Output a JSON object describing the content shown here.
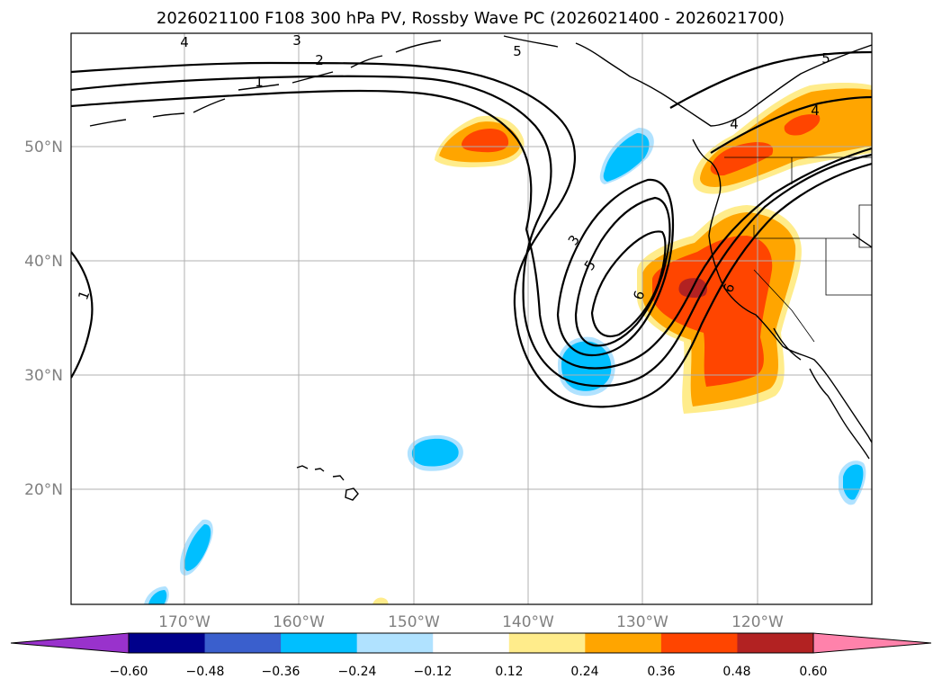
{
  "title": "2026021100 F108 300 hPa PV, Rossby Wave PC (2026021400 - 2026021700)",
  "map": {
    "lat_labels": [
      "20°N",
      "30°N",
      "40°N",
      "50°N"
    ],
    "lon_labels": [
      "170°W",
      "160°W",
      "150°W",
      "140°W",
      "130°W",
      "120°W"
    ],
    "contour_labels": [
      "1",
      "2",
      "3",
      "4",
      "5",
      "6",
      "3",
      "5",
      "6",
      "4",
      "5",
      "1",
      "4"
    ],
    "contour_color": "#000000",
    "gridline_color": "#b0b0b0",
    "coastline_color": "#000000"
  },
  "colorbar": {
    "tick_labels": [
      "−0.60",
      "−0.48",
      "−0.36",
      "−0.24",
      "−0.12",
      "0.12",
      "0.24",
      "0.36",
      "0.48",
      "0.60"
    ],
    "colors": [
      "#9932cc",
      "#00008b",
      "#3a5fcd",
      "#00bfff",
      "#b0e2ff",
      "#ffffff",
      "#ffec8b",
      "#ffa500",
      "#ff4500",
      "#b22222",
      "#ff82ab"
    ]
  }
}
